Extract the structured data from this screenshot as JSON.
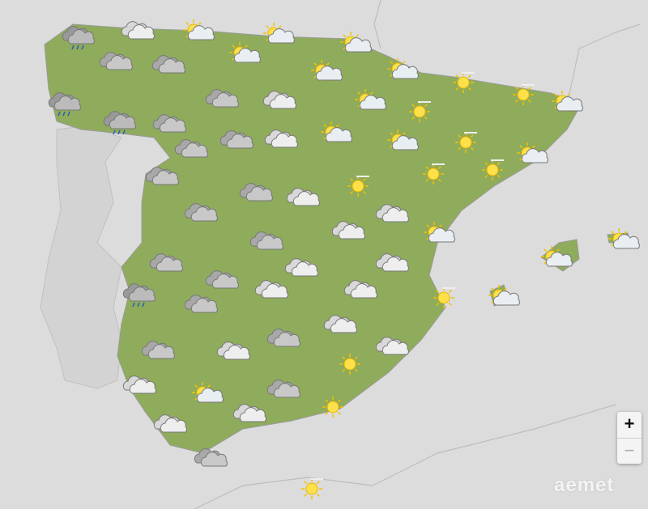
{
  "map": {
    "background": "#dcdcdc",
    "land_color": "#8fab5c",
    "icons": [
      "rain",
      "cloudy-light",
      "partly-cloudy",
      "partly-cloudy",
      "partly-cloudy",
      "partly-cloudy",
      "cloudy",
      "cloudy",
      "partly-cloudy",
      "partly-cloudy",
      "sun-haze",
      "sun-haze",
      "partly-cloudy",
      "rain",
      "rain",
      "cloudy",
      "cloudy",
      "cloudy-light",
      "partly-cloudy",
      "sun-haze",
      "partly-cloudy",
      "partly-cloudy",
      "sun-haze",
      "cloudy",
      "cloudy",
      "cloudy-light",
      "partly-cloudy",
      "cloudy",
      "sun-haze",
      "sun-haze",
      "sun-haze",
      "cloudy",
      "cloudy-light",
      "cloudy",
      "cloudy-light",
      "partly-cloudy",
      "cloudy-light",
      "cloudy",
      "partly-cloudy",
      "partly-cloudy",
      "cloudy",
      "cloudy-light",
      "cloudy-light",
      "cloudy",
      "rain",
      "cloudy-light",
      "cloudy-light",
      "sun-haze",
      "partly-cloudy",
      "cloudy",
      "cloudy-light",
      "cloudy",
      "cloudy",
      "cloudy-light",
      "cloudy-light",
      "sun",
      "cloudy-light",
      "partly-cloudy",
      "cloudy",
      "sun",
      "cloudy-light",
      "cloudy-light",
      "cloudy",
      "sun-haze"
    ]
  },
  "zoom": {
    "in_label": "+",
    "out_label": "−"
  },
  "logo": {
    "text": "aemet"
  }
}
